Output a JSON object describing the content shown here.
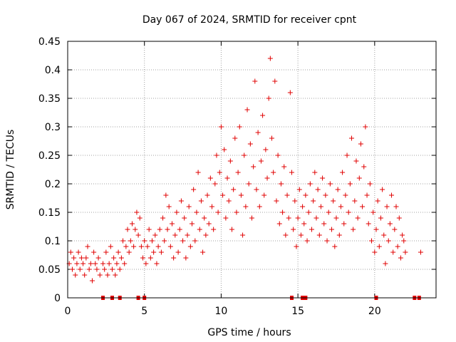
{
  "chart_data": {
    "type": "scatter",
    "title": "Day 067 of 2024, SRMTID for receiver cpnt",
    "xlabel": "GPS time / hours",
    "ylabel": "SRMTID / TECUs",
    "xlim": [
      0,
      24
    ],
    "ylim": [
      0,
      0.45
    ],
    "grid": true,
    "x_ticks": [
      0,
      5,
      10,
      15,
      20
    ],
    "x_tick_labels": [
      "0",
      "5",
      "10",
      "15",
      "20"
    ],
    "y_ticks": [
      0,
      0.05,
      0.1,
      0.15,
      0.2,
      0.25,
      0.3,
      0.35,
      0.4,
      0.45
    ],
    "y_tick_labels": [
      "0",
      "0.05",
      "0.1",
      "0.15",
      "0.2",
      "0.25",
      "0.3",
      "0.35",
      "0.4",
      "0.45"
    ],
    "marker": "+",
    "color": "#e00000",
    "series": [
      {
        "name": "SRMTID",
        "points": [
          [
            0.1,
            0.06
          ],
          [
            0.2,
            0.08
          ],
          [
            0.3,
            0.05
          ],
          [
            0.4,
            0.07
          ],
          [
            0.5,
            0.04
          ],
          [
            0.6,
            0.06
          ],
          [
            0.7,
            0.08
          ],
          [
            0.8,
            0.05
          ],
          [
            0.9,
            0.07
          ],
          [
            1.0,
            0.06
          ],
          [
            1.1,
            0.04
          ],
          [
            1.2,
            0.07
          ],
          [
            1.3,
            0.09
          ],
          [
            1.4,
            0.05
          ],
          [
            1.5,
            0.06
          ],
          [
            1.6,
            0.03
          ],
          [
            1.7,
            0.08
          ],
          [
            1.8,
            0.06
          ],
          [
            1.9,
            0.05
          ],
          [
            2.0,
            0.07
          ],
          [
            2.1,
            0.04
          ],
          [
            2.3,
            0.06
          ],
          [
            2.4,
            0.05
          ],
          [
            2.5,
            0.08
          ],
          [
            2.6,
            0.04
          ],
          [
            2.7,
            0.06
          ],
          [
            2.8,
            0.09
          ],
          [
            2.9,
            0.05
          ],
          [
            3.0,
            0.07
          ],
          [
            3.1,
            0.04
          ],
          [
            3.2,
            0.06
          ],
          [
            3.3,
            0.08
          ],
          [
            3.4,
            0.05
          ],
          [
            3.5,
            0.07
          ],
          [
            3.6,
            0.1
          ],
          [
            3.7,
            0.06
          ],
          [
            3.8,
            0.09
          ],
          [
            3.9,
            0.12
          ],
          [
            4.0,
            0.08
          ],
          [
            4.1,
            0.1
          ],
          [
            4.2,
            0.13
          ],
          [
            4.3,
            0.09
          ],
          [
            4.4,
            0.12
          ],
          [
            4.5,
            0.15
          ],
          [
            4.6,
            0.11
          ],
          [
            4.7,
            0.14
          ],
          [
            4.8,
            0.09
          ],
          [
            4.9,
            0.07
          ],
          [
            5.0,
            0.1
          ],
          [
            5.1,
            0.06
          ],
          [
            5.2,
            0.09
          ],
          [
            5.3,
            0.12
          ],
          [
            5.4,
            0.07
          ],
          [
            5.5,
            0.1
          ],
          [
            5.6,
            0.08
          ],
          [
            5.7,
            0.11
          ],
          [
            5.8,
            0.06
          ],
          [
            5.9,
            0.09
          ],
          [
            6.0,
            0.12
          ],
          [
            6.1,
            0.08
          ],
          [
            6.2,
            0.14
          ],
          [
            6.3,
            0.1
          ],
          [
            6.4,
            0.18
          ],
          [
            6.5,
            0.12
          ],
          [
            6.6,
            0.16
          ],
          [
            6.7,
            0.09
          ],
          [
            6.8,
            0.13
          ],
          [
            6.9,
            0.07
          ],
          [
            7.0,
            0.11
          ],
          [
            7.1,
            0.15
          ],
          [
            7.2,
            0.08
          ],
          [
            7.3,
            0.12
          ],
          [
            7.4,
            0.17
          ],
          [
            7.5,
            0.1
          ],
          [
            7.6,
            0.14
          ],
          [
            7.7,
            0.07
          ],
          [
            7.8,
            0.11
          ],
          [
            7.9,
            0.16
          ],
          [
            8.0,
            0.09
          ],
          [
            8.1,
            0.13
          ],
          [
            8.2,
            0.19
          ],
          [
            8.3,
            0.1
          ],
          [
            8.4,
            0.15
          ],
          [
            8.5,
            0.22
          ],
          [
            8.6,
            0.12
          ],
          [
            8.7,
            0.17
          ],
          [
            8.8,
            0.08
          ],
          [
            8.9,
            0.14
          ],
          [
            9.0,
            0.11
          ],
          [
            9.1,
            0.18
          ],
          [
            9.2,
            0.13
          ],
          [
            9.3,
            0.21
          ],
          [
            9.4,
            0.16
          ],
          [
            9.5,
            0.12
          ],
          [
            9.6,
            0.2
          ],
          [
            9.7,
            0.25
          ],
          [
            9.8,
            0.15
          ],
          [
            9.9,
            0.22
          ],
          [
            10.0,
            0.3
          ],
          [
            10.1,
            0.18
          ],
          [
            10.2,
            0.26
          ],
          [
            10.3,
            0.14
          ],
          [
            10.4,
            0.21
          ],
          [
            10.5,
            0.17
          ],
          [
            10.6,
            0.24
          ],
          [
            10.7,
            0.12
          ],
          [
            10.8,
            0.19
          ],
          [
            10.9,
            0.28
          ],
          [
            11.0,
            0.15
          ],
          [
            11.1,
            0.22
          ],
          [
            11.2,
            0.3
          ],
          [
            11.3,
            0.18
          ],
          [
            11.4,
            0.11
          ],
          [
            11.5,
            0.25
          ],
          [
            11.6,
            0.16
          ],
          [
            11.7,
            0.33
          ],
          [
            11.8,
            0.2
          ],
          [
            11.9,
            0.27
          ],
          [
            12.0,
            0.14
          ],
          [
            12.1,
            0.23
          ],
          [
            12.2,
            0.38
          ],
          [
            12.3,
            0.19
          ],
          [
            12.4,
            0.29
          ],
          [
            12.5,
            0.16
          ],
          [
            12.6,
            0.24
          ],
          [
            12.7,
            0.32
          ],
          [
            12.8,
            0.18
          ],
          [
            12.9,
            0.26
          ],
          [
            13.0,
            0.21
          ],
          [
            13.1,
            0.35
          ],
          [
            13.2,
            0.42
          ],
          [
            13.3,
            0.28
          ],
          [
            13.4,
            0.22
          ],
          [
            13.5,
            0.38
          ],
          [
            13.6,
            0.17
          ],
          [
            13.7,
            0.25
          ],
          [
            13.8,
            0.13
          ],
          [
            13.9,
            0.2
          ],
          [
            14.0,
            0.15
          ],
          [
            14.1,
            0.23
          ],
          [
            14.2,
            0.11
          ],
          [
            14.3,
            0.18
          ],
          [
            14.4,
            0.14
          ],
          [
            14.5,
            0.36
          ],
          [
            14.6,
            0.22
          ],
          [
            14.7,
            0.12
          ],
          [
            14.8,
            0.17
          ],
          [
            14.9,
            0.09
          ],
          [
            15.0,
            0.14
          ],
          [
            15.1,
            0.19
          ],
          [
            15.2,
            0.11
          ],
          [
            15.3,
            0.16
          ],
          [
            15.4,
            0.13
          ],
          [
            15.5,
            0.18
          ],
          [
            15.6,
            0.1
          ],
          [
            15.7,
            0.15
          ],
          [
            15.8,
            0.2
          ],
          [
            15.9,
            0.12
          ],
          [
            16.0,
            0.17
          ],
          [
            16.1,
            0.22
          ],
          [
            16.2,
            0.14
          ],
          [
            16.3,
            0.19
          ],
          [
            16.4,
            0.11
          ],
          [
            16.5,
            0.16
          ],
          [
            16.6,
            0.21
          ],
          [
            16.7,
            0.13
          ],
          [
            16.8,
            0.18
          ],
          [
            16.9,
            0.1
          ],
          [
            17.0,
            0.15
          ],
          [
            17.1,
            0.2
          ],
          [
            17.2,
            0.12
          ],
          [
            17.3,
            0.17
          ],
          [
            17.4,
            0.09
          ],
          [
            17.5,
            0.14
          ],
          [
            17.6,
            0.19
          ],
          [
            17.7,
            0.11
          ],
          [
            17.8,
            0.16
          ],
          [
            17.9,
            0.22
          ],
          [
            18.0,
            0.13
          ],
          [
            18.1,
            0.18
          ],
          [
            18.2,
            0.25
          ],
          [
            18.3,
            0.15
          ],
          [
            18.4,
            0.2
          ],
          [
            18.5,
            0.28
          ],
          [
            18.6,
            0.12
          ],
          [
            18.7,
            0.17
          ],
          [
            18.8,
            0.24
          ],
          [
            18.9,
            0.14
          ],
          [
            19.0,
            0.21
          ],
          [
            19.1,
            0.27
          ],
          [
            19.2,
            0.16
          ],
          [
            19.3,
            0.23
          ],
          [
            19.4,
            0.3
          ],
          [
            19.5,
            0.18
          ],
          [
            19.6,
            0.13
          ],
          [
            19.7,
            0.2
          ],
          [
            19.8,
            0.1
          ],
          [
            19.9,
            0.15
          ],
          [
            20.0,
            0.08
          ],
          [
            20.1,
            0.12
          ],
          [
            20.2,
            0.17
          ],
          [
            20.3,
            0.09
          ],
          [
            20.4,
            0.14
          ],
          [
            20.5,
            0.19
          ],
          [
            20.6,
            0.11
          ],
          [
            20.7,
            0.06
          ],
          [
            20.8,
            0.16
          ],
          [
            20.9,
            0.1
          ],
          [
            21.0,
            0.13
          ],
          [
            21.1,
            0.18
          ],
          [
            21.2,
            0.08
          ],
          [
            21.3,
            0.12
          ],
          [
            21.4,
            0.16
          ],
          [
            21.5,
            0.09
          ],
          [
            21.6,
            0.14
          ],
          [
            21.7,
            0.07
          ],
          [
            21.8,
            0.11
          ],
          [
            21.9,
            0.1
          ],
          [
            22.0,
            0.08
          ],
          [
            23.0,
            0.08
          ]
        ]
      }
    ],
    "data_gaps_at_zero": [
      2.3,
      2.9,
      3.4,
      4.6,
      5.0,
      14.6,
      15.3,
      15.5,
      20.1,
      22.6,
      22.9
    ]
  }
}
